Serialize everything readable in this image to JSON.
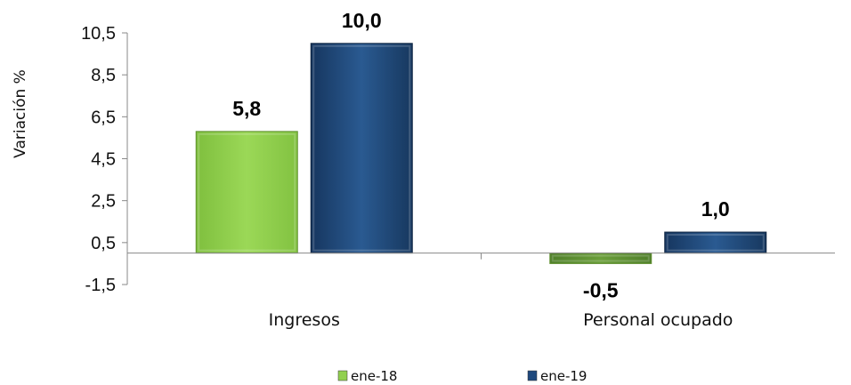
{
  "chart_data": {
    "type": "bar",
    "ylabel": "Variación  %",
    "categories": [
      "Ingresos",
      "Personal ocupado"
    ],
    "series": [
      {
        "name": "ene-18",
        "color": "#92d050",
        "values": [
          5.8,
          -0.5
        ],
        "labels": [
          "5,8",
          "-0,5"
        ]
      },
      {
        "name": "ene-19",
        "color": "#1f497d",
        "values": [
          10.0,
          1.0
        ],
        "labels": [
          "10,0",
          "1,0"
        ]
      }
    ],
    "ylim": [
      -1.5,
      10.5
    ],
    "yticks": [
      -1.5,
      0.5,
      2.5,
      4.5,
      6.5,
      8.5,
      10.5
    ],
    "ytick_labels": [
      "-1,5",
      "0,5",
      "2,5",
      "4,5",
      "6,5",
      "8,5",
      "10,5"
    ],
    "grid": false,
    "legend_position": "bottom"
  }
}
